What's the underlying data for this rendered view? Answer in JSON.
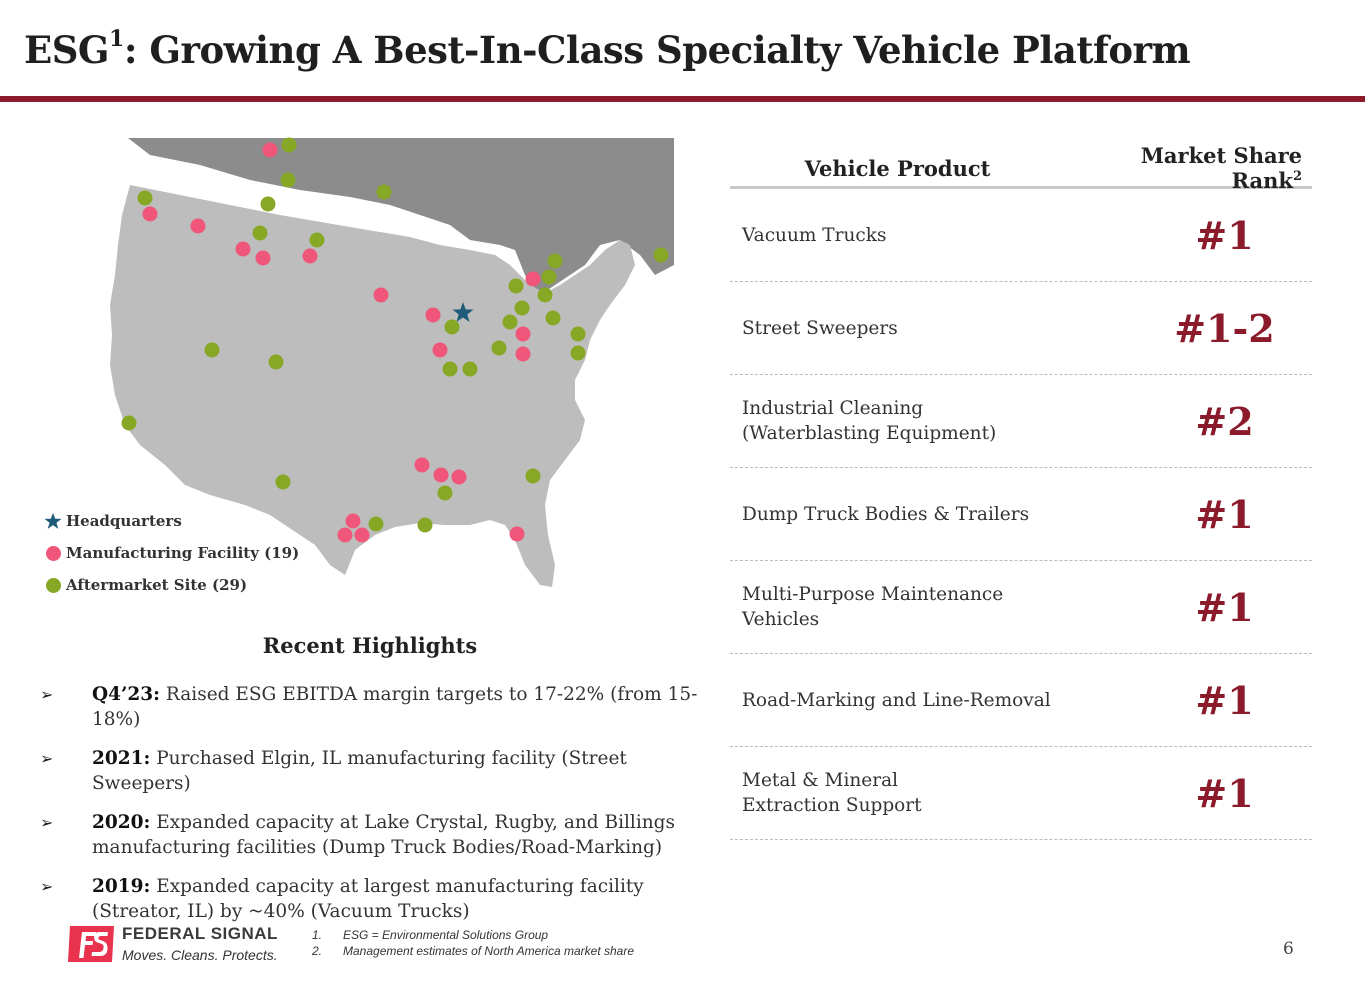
{
  "title": {
    "main": "ESG",
    "sup": "1",
    "rest": ": Growing A Best-In-Class Specialty Vehicle Platform"
  },
  "legend": {
    "headquarters": "Headquarters",
    "manufacturing": "Manufacturing Facility (19)",
    "aftermarket": "Aftermarket Site (29)"
  },
  "colors": {
    "brand": "#8b1a2b",
    "manufacturing": "#f0567a",
    "aftermarket": "#86a824",
    "headquarters": "#1f5a78",
    "land_us": "#bdbdbd",
    "land_canada": "#8c8c8c"
  },
  "highlights": {
    "title": "Recent Highlights",
    "items": [
      {
        "bold": "Q4’23:",
        "text": " Raised ESG EBITDA margin targets to 17-22% (from 15-18%)"
      },
      {
        "bold": "2021:",
        "text": " Purchased Elgin, IL manufacturing facility (Street Sweepers)"
      },
      {
        "bold": "2020:",
        "text": " Expanded capacity at Lake Crystal, Rugby, and Billings manufacturing facilities (Dump Truck Bodies/Road-Marking)"
      },
      {
        "bold": "2019:",
        "text": " Expanded capacity at largest manufacturing facility (Streator, IL) by ~40% (Vacuum Trucks)"
      }
    ]
  },
  "table": {
    "header_product": "Vehicle Product",
    "header_rank": "Market Share Rank",
    "header_rank_sup": "2",
    "rows": [
      {
        "product": "Vacuum Trucks",
        "rank": "#1"
      },
      {
        "product": "Street Sweepers",
        "rank": "#1-2"
      },
      {
        "product": "Industrial Cleaning (Waterblasting Equipment)",
        "rank": "#2"
      },
      {
        "product": "Dump Truck Bodies & Trailers",
        "rank": "#1"
      },
      {
        "product": "Multi-Purpose Maintenance Vehicles",
        "rank": "#1"
      },
      {
        "product": "Road-Marking and Line-Removal",
        "rank": "#1"
      },
      {
        "product": "Metal & Mineral Extraction Support",
        "rank": "#1"
      }
    ]
  },
  "footer": {
    "logo_name": "FEDERAL SIGNAL",
    "logo_tagline": "Moves. Cleans. Protects.",
    "notes": [
      {
        "num": "1.",
        "text": "ESG = Environmental Solutions Group"
      },
      {
        "num": "2.",
        "text": "Management estimates of North America market share"
      }
    ],
    "page_number": "6"
  }
}
